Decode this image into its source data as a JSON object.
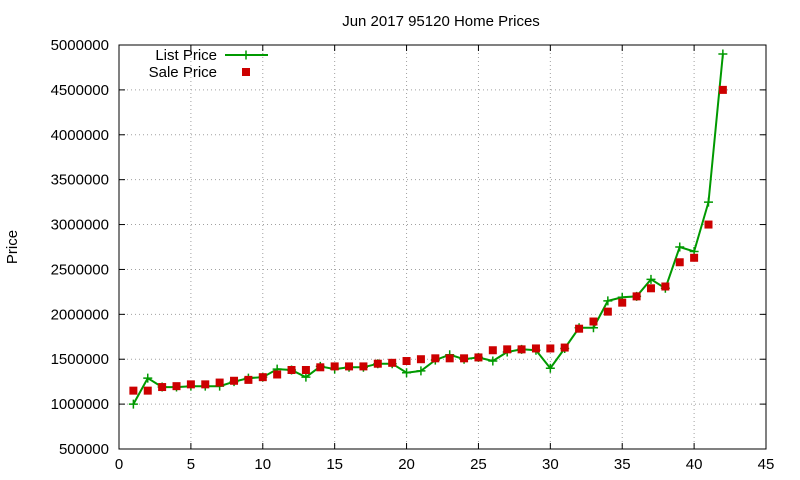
{
  "chart_data": {
    "type": "line",
    "title": "Jun 2017 95120 Home Prices",
    "xlabel": "",
    "ylabel": "Price",
    "xlim": [
      0,
      45
    ],
    "ylim": [
      500000,
      5000000
    ],
    "xticks": [
      0,
      5,
      10,
      15,
      20,
      25,
      30,
      35,
      40,
      45
    ],
    "yticks": [
      500000,
      1000000,
      1500000,
      2000000,
      2500000,
      3000000,
      3500000,
      4000000,
      4500000,
      5000000
    ],
    "grid": true,
    "legend_position": "top-left",
    "series": [
      {
        "name": "List Price",
        "style": "line-plus",
        "color": "#009900",
        "x": [
          1,
          2,
          3,
          4,
          5,
          6,
          7,
          8,
          9,
          10,
          11,
          12,
          13,
          14,
          15,
          16,
          17,
          18,
          19,
          20,
          21,
          22,
          23,
          24,
          25,
          26,
          27,
          28,
          29,
          30,
          31,
          32,
          33,
          34,
          35,
          36,
          37,
          38,
          39,
          40,
          41,
          42
        ],
        "values": [
          1000000,
          1290000,
          1190000,
          1190000,
          1200000,
          1200000,
          1200000,
          1250000,
          1290000,
          1300000,
          1390000,
          1380000,
          1300000,
          1420000,
          1390000,
          1410000,
          1410000,
          1450000,
          1450000,
          1350000,
          1370000,
          1490000,
          1550000,
          1500000,
          1520000,
          1480000,
          1580000,
          1610000,
          1600000,
          1400000,
          1620000,
          1850000,
          1850000,
          2150000,
          2190000,
          2200000,
          2390000,
          2290000,
          2750000,
          2700000,
          3250000,
          4900000
        ]
      },
      {
        "name": "Sale Price",
        "style": "square-marker",
        "color": "#cc0000",
        "x": [
          1,
          2,
          3,
          4,
          5,
          6,
          7,
          8,
          9,
          10,
          11,
          12,
          13,
          14,
          15,
          16,
          17,
          18,
          19,
          20,
          21,
          22,
          23,
          24,
          25,
          26,
          27,
          28,
          29,
          30,
          31,
          32,
          33,
          34,
          35,
          36,
          37,
          38,
          39,
          40,
          41,
          42
        ],
        "values": [
          1150000,
          1150000,
          1190000,
          1200000,
          1220000,
          1220000,
          1240000,
          1260000,
          1270000,
          1300000,
          1330000,
          1380000,
          1380000,
          1410000,
          1420000,
          1420000,
          1420000,
          1450000,
          1460000,
          1480000,
          1500000,
          1510000,
          1510000,
          1510000,
          1520000,
          1600000,
          1610000,
          1610000,
          1620000,
          1620000,
          1630000,
          1840000,
          1920000,
          2030000,
          2130000,
          2200000,
          2290000,
          2310000,
          2580000,
          2630000,
          3000000,
          4500000
        ]
      }
    ]
  }
}
